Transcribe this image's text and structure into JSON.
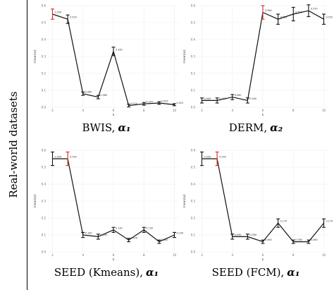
{
  "row_label": "Real-world datasets",
  "colors": {
    "line": "#111111",
    "error_highlight": "#d62728",
    "error_normal": "#111111",
    "grid": "#ededed"
  },
  "chart_data": [
    {
      "type": "line",
      "caption_text": "BWIS,",
      "caption_symbol": "α₁",
      "xlabel": "k",
      "ylabel": "mean(α)",
      "ylim": [
        0,
        0.6
      ],
      "yticks": [
        0.0,
        0.1,
        0.2,
        0.3,
        0.4,
        0.5,
        0.6
      ],
      "xticks": [
        2,
        4,
        6,
        8,
        10
      ],
      "highlight": [
        2
      ],
      "x": [
        2,
        3,
        4,
        5,
        6,
        7,
        8,
        9,
        10
      ],
      "y": [
        0.55,
        0.52,
        0.08,
        0.06,
        0.33,
        0.01,
        0.02,
        0.025,
        0.015
      ],
      "err": [
        0.03,
        0.025,
        0.01,
        0.01,
        0.025,
        0.008,
        0.008,
        0.008,
        0.006
      ],
      "labels": [
        "0.550",
        "0.520",
        "0.080",
        "0.060",
        "0.330",
        "0.010",
        "0.020",
        "0.025",
        "0.015"
      ]
    },
    {
      "type": "line",
      "caption_text": "DERM,",
      "caption_symbol": "α₂",
      "xlabel": "k",
      "ylabel": "mean(α)",
      "ylim": [
        0,
        0.6
      ],
      "yticks": [
        0.0,
        0.1,
        0.2,
        0.3,
        0.4,
        0.5,
        0.6
      ],
      "xticks": [
        2,
        4,
        6,
        8,
        10
      ],
      "highlight": [
        6
      ],
      "x": [
        2,
        3,
        4,
        5,
        6,
        7,
        8,
        9,
        10
      ],
      "y": [
        0.04,
        0.04,
        0.06,
        0.04,
        0.56,
        0.52,
        0.55,
        0.57,
        0.52
      ],
      "err": [
        0.015,
        0.015,
        0.015,
        0.015,
        0.04,
        0.03,
        0.04,
        0.035,
        0.03
      ],
      "labels": [
        "0.040",
        "0.040",
        "0.060",
        "0.040",
        "0.560",
        "0.520",
        "0.550",
        "0.570",
        "0.520"
      ]
    },
    {
      "type": "line",
      "caption_text": "SEED (Kmeans),",
      "caption_symbol": "α₁",
      "xlabel": "k",
      "ylabel": "mean(α)",
      "ylim": [
        0,
        0.6
      ],
      "yticks": [
        0.0,
        0.1,
        0.2,
        0.3,
        0.4,
        0.5,
        0.6
      ],
      "xticks": [
        2,
        4,
        6,
        8,
        10
      ],
      "highlight": [
        3
      ],
      "x": [
        2,
        3,
        4,
        5,
        6,
        7,
        8,
        9,
        10
      ],
      "y": [
        0.55,
        0.55,
        0.1,
        0.09,
        0.13,
        0.07,
        0.13,
        0.06,
        0.1
      ],
      "err": [
        0.04,
        0.04,
        0.015,
        0.015,
        0.015,
        0.01,
        0.015,
        0.01,
        0.015
      ],
      "labels": [
        "0.550",
        "0.550",
        "0.100",
        "0.090",
        "0.130",
        "0.070",
        "0.130",
        "0.060",
        "0.100"
      ]
    },
    {
      "type": "line",
      "caption_text": "SEED (FCM),",
      "caption_symbol": "α₁",
      "xlabel": "k",
      "ylabel": "mean(α)",
      "ylim": [
        0,
        0.6
      ],
      "yticks": [
        0.0,
        0.1,
        0.2,
        0.3,
        0.4,
        0.5,
        0.6
      ],
      "xticks": [
        2,
        4,
        6,
        8,
        10
      ],
      "highlight": [
        3
      ],
      "x": [
        2,
        3,
        4,
        5,
        6,
        7,
        8,
        9,
        10
      ],
      "y": [
        0.55,
        0.55,
        0.09,
        0.09,
        0.06,
        0.17,
        0.06,
        0.06,
        0.17
      ],
      "err": [
        0.04,
        0.04,
        0.015,
        0.015,
        0.01,
        0.025,
        0.01,
        0.01,
        0.025
      ],
      "labels": [
        "0.550",
        "0.550",
        "0.090",
        "0.090",
        "0.060",
        "0.170",
        "0.060",
        "0.060",
        "0.170"
      ]
    }
  ]
}
